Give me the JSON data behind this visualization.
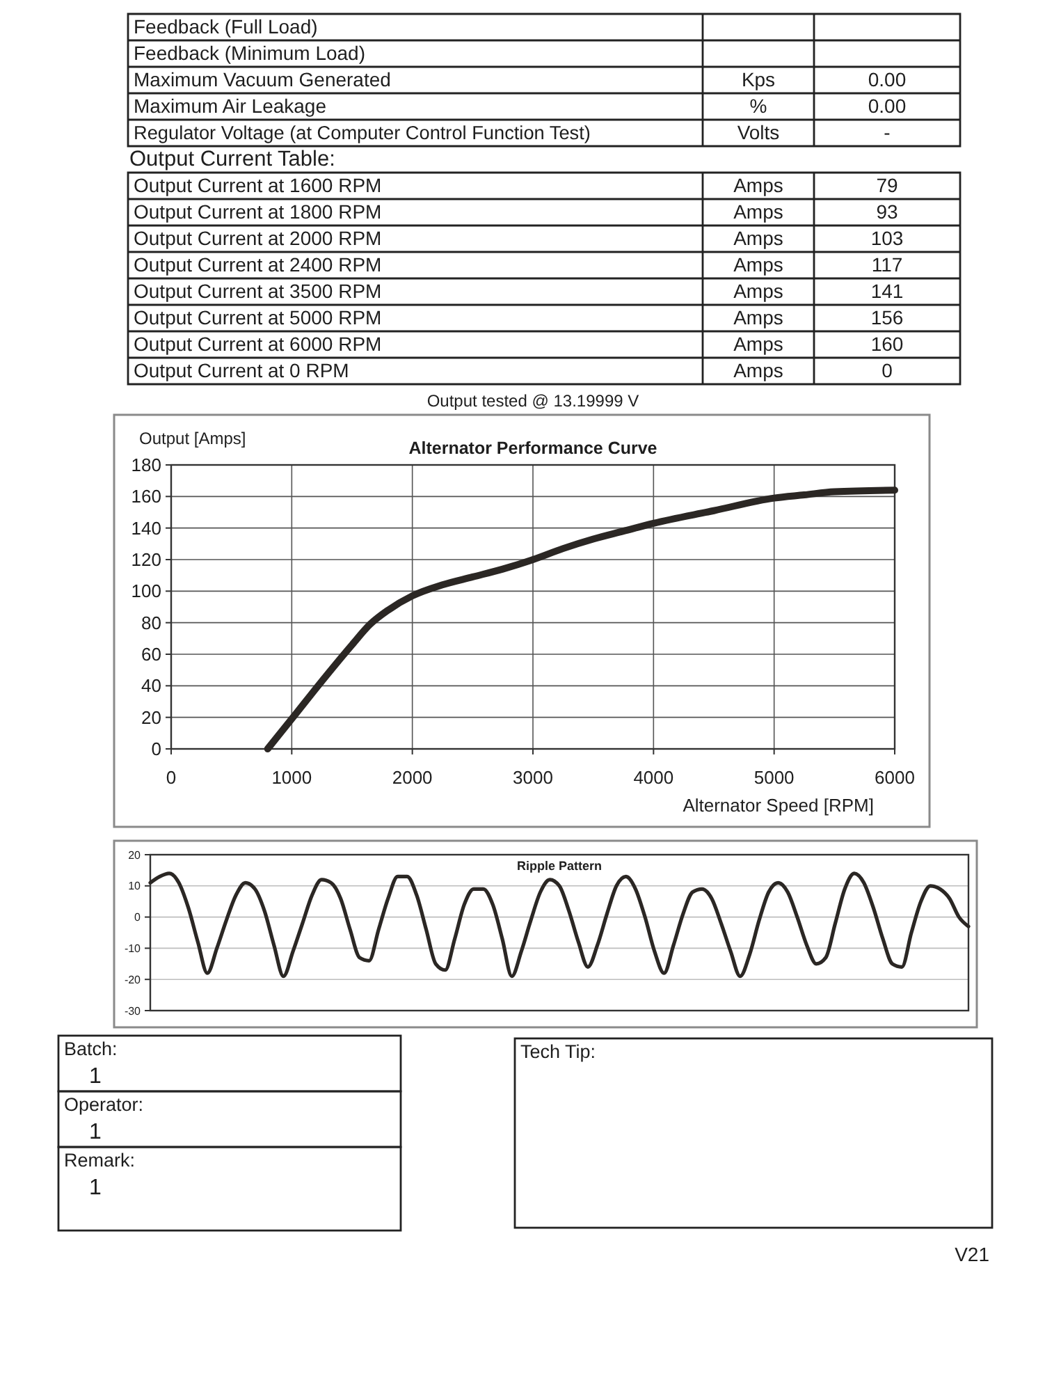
{
  "chart_data": [
    {
      "type": "other",
      "y_categories": [
        "Feedback (Full Load)",
        "Feedback (Minimum Load)",
        "Maximum Vacuum Generated",
        "Maximum Air Leakage",
        "Regulator Voltage (at Computer Control Function Test)",
        "Output Current Table:",
        "Output Current at 1600 RPM",
        "Output Current at 1800 RPM",
        "Output Current at 2000 RPM",
        "Output Current at 2400 RPM",
        "Output Current at 3500 RPM",
        "Output Current at 5000 RPM",
        "Output Current at 6000 RPM",
        "Output Current at 0 RPM"
      ],
      "cell_labels": [
        [
          null,
          null
        ],
        [
          null,
          null
        ],
        [
          "Kps",
          "0.00"
        ],
        [
          "%",
          "0.00"
        ],
        [
          "Volts",
          "-"
        ],
        null,
        [
          "Amps",
          "79"
        ],
        [
          "Amps",
          "93"
        ],
        [
          "Amps",
          "103"
        ],
        [
          "Amps",
          "117"
        ],
        [
          "Amps",
          "141"
        ],
        [
          "Amps",
          "156"
        ],
        [
          "Amps",
          "160"
        ],
        [
          "Amps",
          "0"
        ]
      ]
    },
    {
      "type": "line",
      "title": "Alternator Performance Curve",
      "xlabel": "Alternator Speed [RPM]",
      "ylabel": "Output [Amps]",
      "annotations": [
        "Output tested @ 13.19999 V"
      ],
      "x": [
        800,
        1000,
        1250,
        1500,
        1650,
        1800,
        2000,
        2250,
        2500,
        2750,
        3000,
        3250,
        3500,
        3750,
        4000,
        4500,
        5000,
        5250,
        5500,
        6000
      ],
      "series": [
        {
          "color": "#2b2724",
          "values": [
            0,
            19,
            43,
            66,
            79,
            88,
            97,
            104,
            109,
            114,
            120,
            127,
            133,
            138,
            143,
            151,
            159,
            161,
            163,
            164
          ]
        }
      ],
      "xlim": [
        0,
        6000
      ],
      "xticks": [
        0,
        1000,
        2000,
        3000,
        4000,
        5000,
        6000
      ],
      "ylim": [
        0,
        180
      ],
      "yticks": [
        0,
        20,
        40,
        60,
        80,
        100,
        120,
        140,
        160,
        180
      ],
      "grid": true
    },
    {
      "type": "line",
      "title": "Ripple Pattern",
      "categories": [
        null,
        null,
        null,
        null,
        null,
        null,
        null,
        null,
        null,
        null,
        null,
        null,
        null,
        null,
        null,
        null,
        null,
        null,
        null,
        null,
        null,
        null,
        null,
        null,
        null,
        null,
        null,
        null,
        null,
        null,
        null,
        null,
        null,
        null,
        null,
        null,
        null,
        null,
        null,
        null,
        null,
        null,
        null,
        null,
        null,
        null,
        null,
        null,
        null,
        null,
        null,
        null,
        null,
        null,
        null,
        null,
        null,
        null,
        null,
        null,
        null,
        null,
        null,
        null,
        null,
        null,
        null,
        null,
        null,
        null,
        null,
        null,
        null,
        null,
        null,
        null,
        null,
        null,
        null,
        null,
        null,
        null,
        null,
        null,
        null,
        null,
        null
      ],
      "series": [
        {
          "color": "#2b2724",
          "values": [
            11,
            13,
            14,
            11,
            3,
            -8,
            -18,
            -10,
            -1,
            7,
            11,
            9,
            2,
            -9,
            -19,
            -11,
            -2,
            7,
            12,
            11,
            6,
            -4,
            -13,
            -14,
            -4,
            6,
            13,
            13,
            7,
            -4,
            -15,
            -17,
            -7,
            4,
            9,
            9,
            4,
            -7,
            -19,
            -11,
            -1,
            8,
            12,
            10,
            2,
            -8,
            -16,
            -9,
            1,
            10,
            13,
            9,
            0,
            -11,
            -18,
            -9,
            1,
            8,
            9,
            6,
            -2,
            -11,
            -19,
            -12,
            -1,
            8,
            11,
            8,
            0,
            -9,
            -15,
            -13,
            -2,
            9,
            14,
            11,
            3,
            -7,
            -15,
            -16,
            -5,
            5,
            10,
            9,
            6,
            0,
            -3
          ]
        }
      ],
      "ylim": [
        -30,
        20
      ],
      "yticks": [
        -30,
        -20,
        -10,
        0,
        10,
        20
      ],
      "grid": "y",
      "tick_labels": "y"
    },
    {
      "type": "other",
      "y_categories": [
        "Batch:",
        "Operator:",
        "Remark:"
      ],
      "cell_labels": [
        [
          "1"
        ],
        [
          "1"
        ],
        [
          "1"
        ]
      ],
      "annotations": [
        "Tech Tip:",
        "V21"
      ]
    }
  ]
}
